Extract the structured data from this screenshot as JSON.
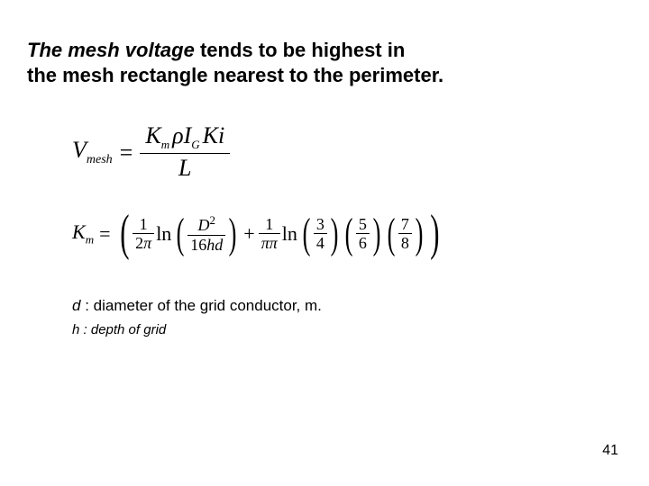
{
  "headline": {
    "lead": "The mesh voltage",
    "rest1": "  tends to be highest in",
    "line2": " the mesh rectangle nearest to the perimeter."
  },
  "eq1": {
    "lhs_var": "V",
    "lhs_sub": "mesh",
    "num_K": "K",
    "num_K_sub": "m",
    "num_rho": "ρ",
    "num_I": "I",
    "num_I_sub": "G",
    "num_Ki": "Ki",
    "den": "L"
  },
  "eq2": {
    "lhs_var": "K",
    "lhs_sub": "m",
    "frac1_num": "1",
    "frac1_den_2": "2",
    "frac1_den_pi": "π",
    "ln": "ln",
    "D": "D",
    "D_sup": "2",
    "sixteen": "16",
    "h": "h",
    "d": "d",
    "plus": "+",
    "one": "1",
    "pi": "π",
    "f_3": "3",
    "f_4": "4",
    "f_5": "5",
    "f_6": "6",
    "f_7": "7",
    "f_8": "8"
  },
  "defs": {
    "d_sym": "d",
    "d_text": " : diameter of the grid conductor, m.",
    "h_sym": "h",
    "h_text": " : depth of grid"
  },
  "page": "41",
  "colors": {
    "text": "#000000",
    "bg": "#ffffff"
  }
}
